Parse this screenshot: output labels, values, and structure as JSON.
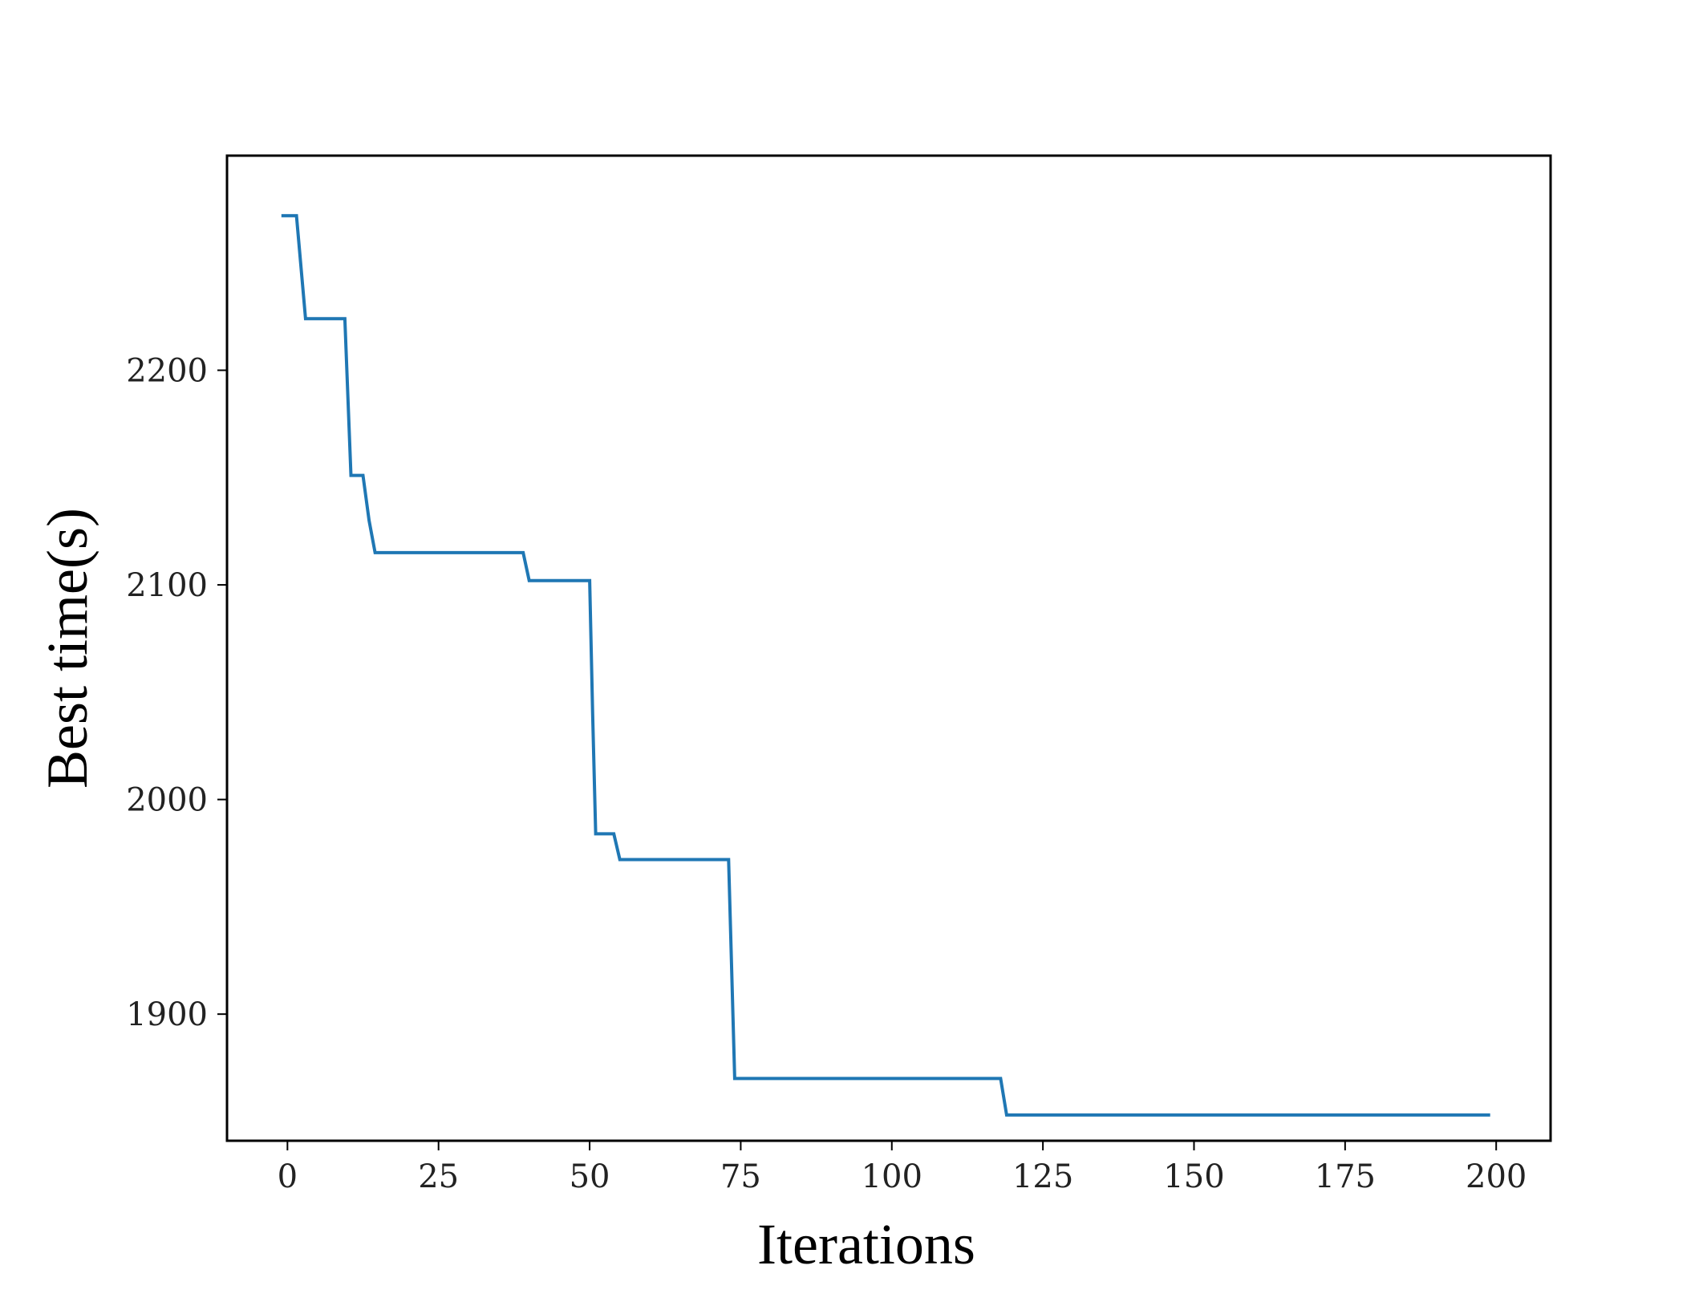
{
  "chart_data": {
    "type": "line",
    "title": "",
    "xlabel": "Iterations",
    "ylabel": "Best time(s)",
    "xlim": [
      -10,
      209
    ],
    "ylim": [
      1841,
      2300
    ],
    "xticks": [
      0,
      25,
      50,
      75,
      100,
      125,
      150,
      175,
      200
    ],
    "yticks": [
      1900,
      2000,
      2100,
      2200
    ],
    "grid": false,
    "legend": "none",
    "series": [
      {
        "name": "",
        "color": "#1f77b4",
        "points": [
          [
            -1,
            2272
          ],
          [
            1.5,
            2272
          ],
          [
            3,
            2224
          ],
          [
            9.5,
            2224
          ],
          [
            10.5,
            2151
          ],
          [
            12.5,
            2151
          ],
          [
            13.5,
            2130
          ],
          [
            14.5,
            2115
          ],
          [
            39,
            2115
          ],
          [
            40,
            2102
          ],
          [
            50,
            2102
          ],
          [
            50.5,
            2040
          ],
          [
            51,
            1984
          ],
          [
            54,
            1984
          ],
          [
            55,
            1972
          ],
          [
            73,
            1972
          ],
          [
            74,
            1870
          ],
          [
            118,
            1870
          ],
          [
            119,
            1853
          ],
          [
            199,
            1853
          ]
        ]
      }
    ]
  }
}
